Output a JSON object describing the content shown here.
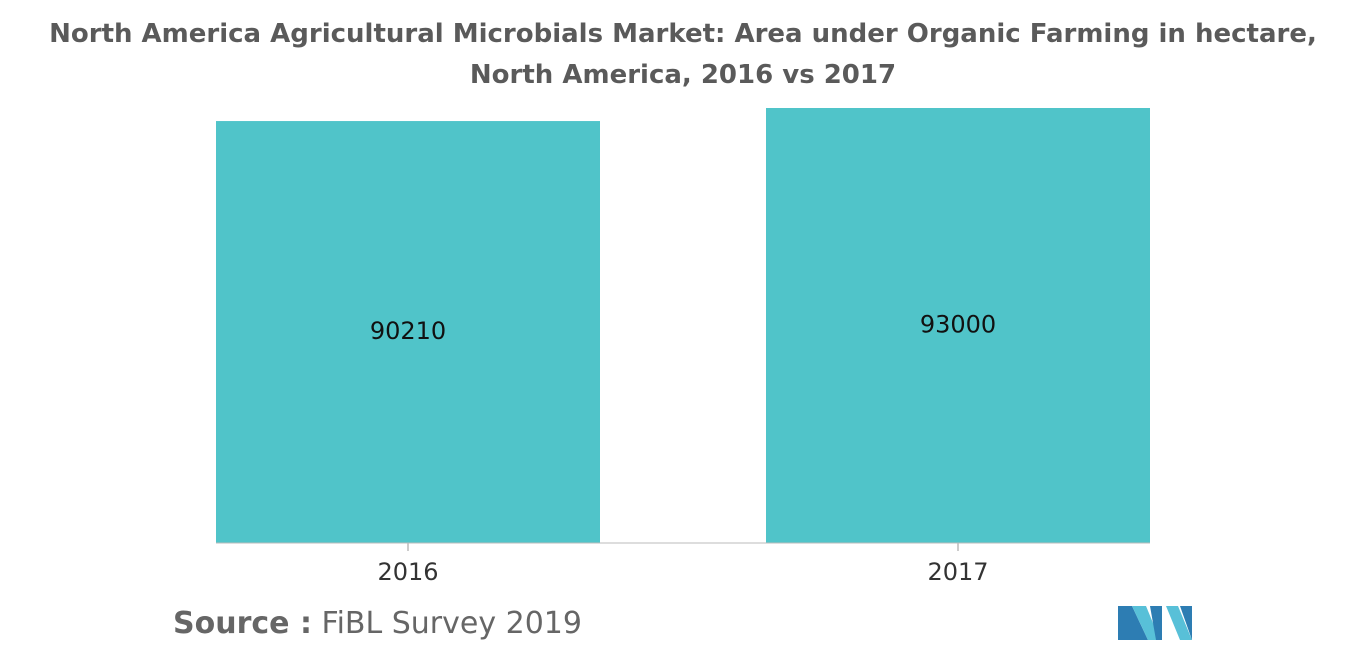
{
  "chart_data": {
    "type": "bar",
    "title": "North America Agricultural Microbials Market: Area under Organic Farming in hectare, North America, 2016 vs 2017",
    "categories": [
      "2016",
      "2017"
    ],
    "values": [
      90210,
      93000
    ],
    "color": "#50c4c9",
    "source_label": "Source :",
    "source": "FiBL Survey 2019"
  }
}
